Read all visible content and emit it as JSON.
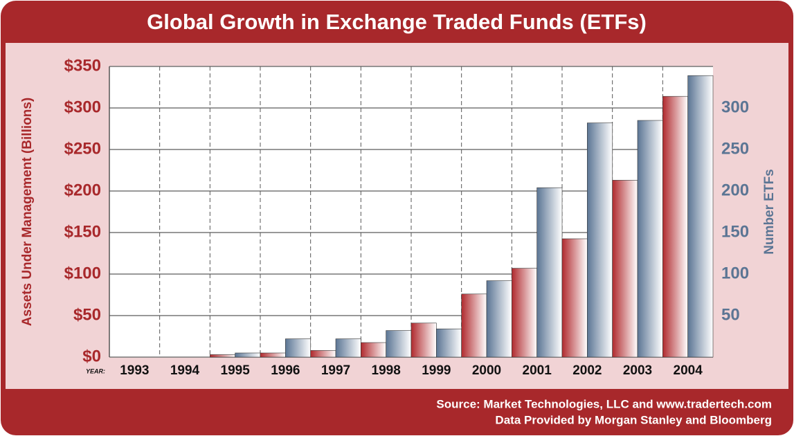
{
  "chart_data": {
    "type": "bar",
    "title": "Global Growth in Exchange Traded Funds (ETFs)",
    "ylabel": "Assets Under Management (Billions)",
    "y2label": "Number ETFs",
    "xlabel": "YEAR:",
    "source": [
      "Source: Market Technologies, LLC and www.tradertech.com",
      "Data Provided by Morgan Stanley and Bloomberg"
    ],
    "categories": [
      "1993",
      "1994",
      "1995",
      "1996",
      "1997",
      "1998",
      "1999",
      "2000",
      "2001",
      "2002",
      "2003",
      "2004"
    ],
    "series": [
      {
        "name": "Assets Under Management (Billions)",
        "color": "#b02a2e",
        "values": [
          0,
          0,
          3,
          5,
          8,
          17.5,
          41,
          76,
          107,
          142.5,
          213,
          314
        ]
      },
      {
        "name": "Number ETFs",
        "color": "#5b7594",
        "axis": "y2",
        "values": [
          0,
          0,
          5,
          22,
          22,
          32,
          34,
          92,
          204,
          282,
          285,
          339
        ]
      }
    ],
    "ylim": [
      0,
      350
    ],
    "yticks": [
      {
        "value": 0,
        "label": "$0"
      },
      {
        "value": 50,
        "label": "$50"
      },
      {
        "value": 100,
        "label": "$100"
      },
      {
        "value": 150,
        "label": "$150"
      },
      {
        "value": 200,
        "label": "$200"
      },
      {
        "value": 250,
        "label": "$250"
      },
      {
        "value": 300,
        "label": "$300"
      },
      {
        "value": 350,
        "label": "$350"
      }
    ],
    "y2lim": [
      0,
      350
    ],
    "y2ticks": [
      50,
      100,
      150,
      200,
      250,
      300
    ],
    "grid": true
  }
}
